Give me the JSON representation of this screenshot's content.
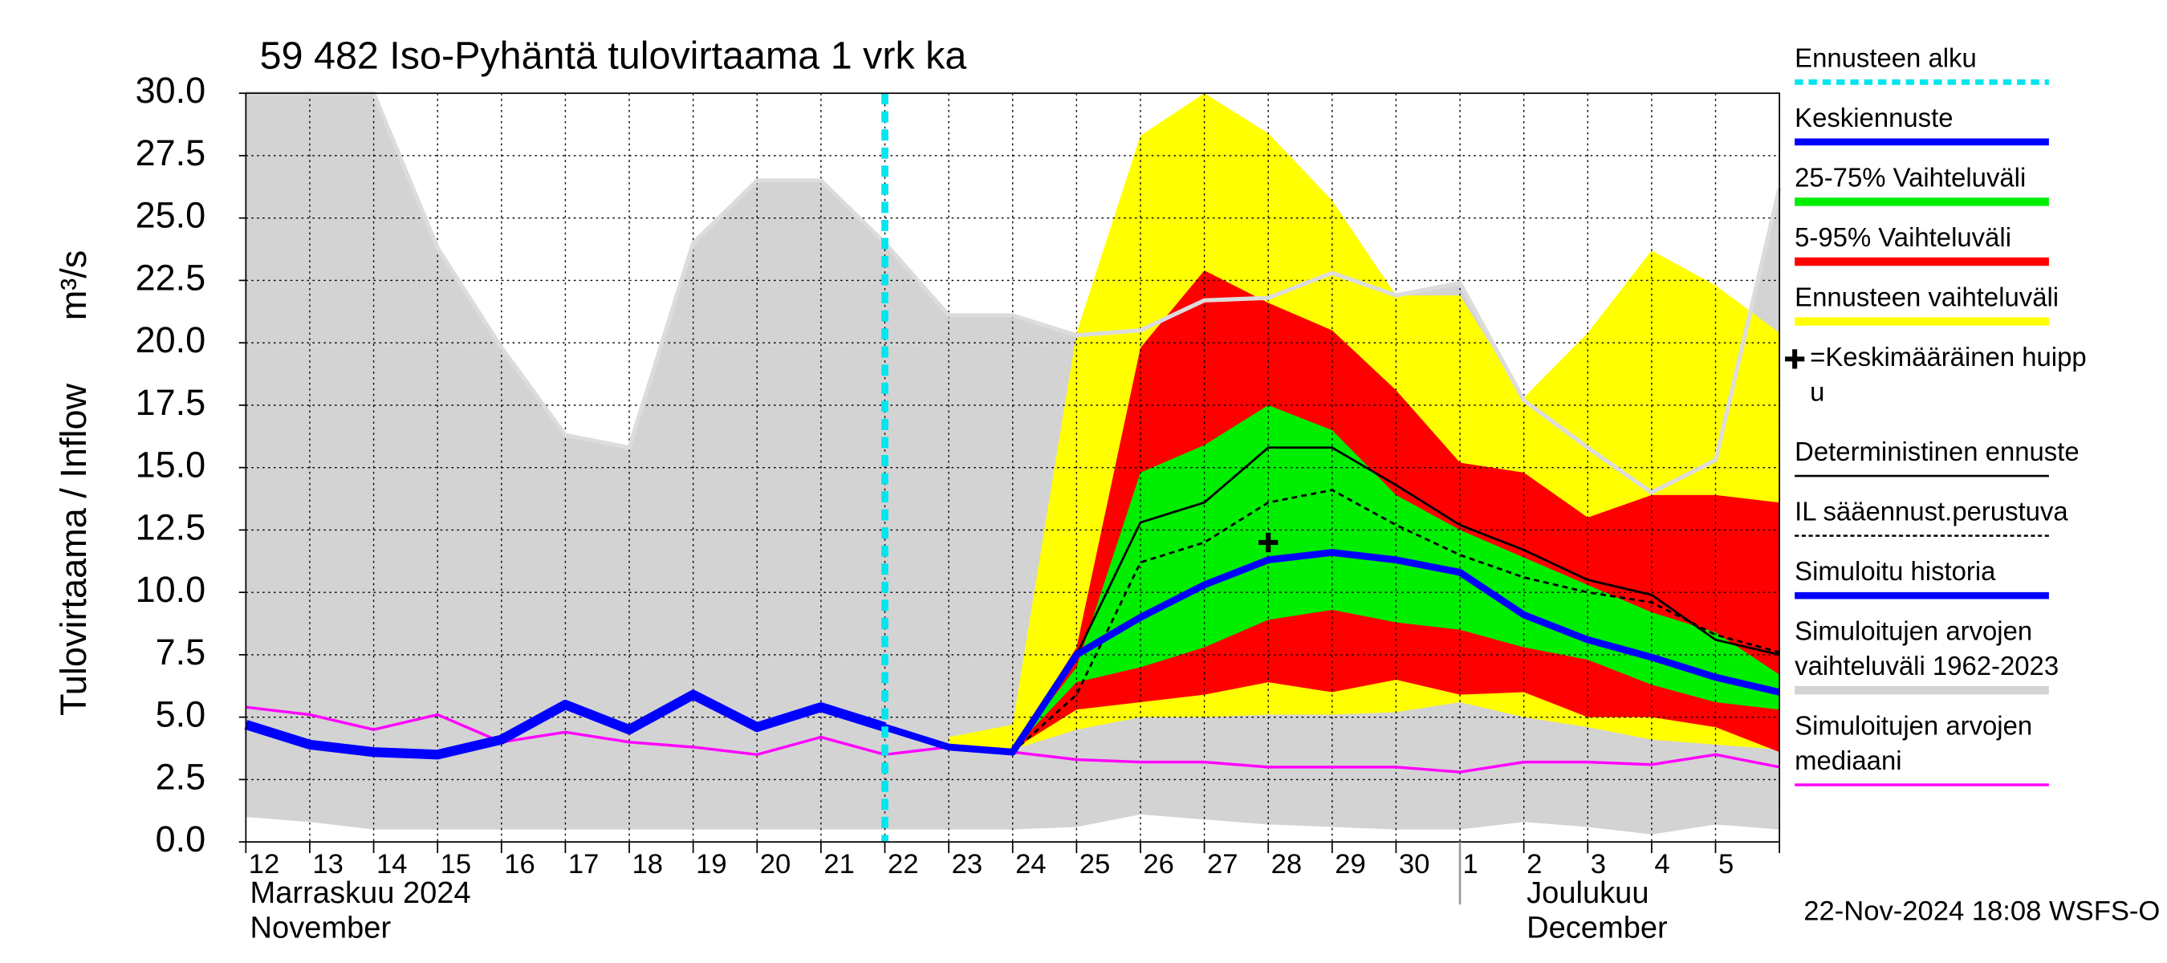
{
  "chart_data": {
    "type": "forecast",
    "title": "59 482 Iso-Pyhäntä tulovirtaama 1 vrk ka",
    "y_label": "Tulovirtaama / Inflow",
    "y_unit": "m³/s",
    "categories": [
      "12",
      "13",
      "14",
      "15",
      "16",
      "17",
      "18",
      "19",
      "20",
      "21",
      "22",
      "23",
      "24",
      "25",
      "26",
      "27",
      "28",
      "29",
      "30",
      "1",
      "2",
      "3",
      "4",
      "5",
      null
    ],
    "months": [
      {
        "lines": [
          "Marraskuu 2024",
          "November"
        ],
        "start": "12"
      },
      {
        "lines": [
          "Joulukuu",
          "December"
        ],
        "start": "1"
      }
    ],
    "ylim": [
      0,
      30
    ],
    "yticks": [
      {
        "value": 0,
        "label": "0.0"
      },
      {
        "value": 2.5,
        "label": "2.5"
      },
      {
        "value": 5,
        "label": "5.0"
      },
      {
        "value": 7.5,
        "label": "7.5"
      },
      {
        "value": 10,
        "label": "10.0"
      },
      {
        "value": 12.5,
        "label": "12.5"
      },
      {
        "value": 15,
        "label": "15.0"
      },
      {
        "value": 17.5,
        "label": "17.5"
      },
      {
        "value": 20,
        "label": "20.0"
      },
      {
        "value": 22.5,
        "label": "22.5"
      },
      {
        "value": 25,
        "label": "25.0"
      },
      {
        "value": 27.5,
        "label": "27.5"
      },
      {
        "value": 30,
        "label": "30.0"
      }
    ],
    "grid": true,
    "timestamp": "22-Nov-2024 18:08 WSFS-O",
    "series": [
      {
        "name": "Ennusteen alku",
        "kind": "vline",
        "color": "#00e5ee",
        "dash": true,
        "at": "22"
      },
      {
        "name": "Keskiennuste",
        "kind": "line",
        "color": "#0000ff",
        "width": 5,
        "values": [
          null,
          null,
          null,
          null,
          null,
          null,
          null,
          null,
          null,
          null,
          4.6,
          3.8,
          3.6,
          7.5,
          9.0,
          10.3,
          11.3,
          11.6,
          11.3,
          10.8,
          9.1,
          8.1,
          7.4,
          6.6,
          6.0
        ]
      },
      {
        "name": "25-75% Vaihteluväli",
        "kind": "band",
        "color": "#00ee00",
        "upper": [
          null,
          null,
          null,
          null,
          null,
          null,
          null,
          null,
          null,
          null,
          null,
          null,
          3.7,
          7.0,
          14.8,
          15.9,
          17.5,
          16.5,
          13.9,
          12.5,
          11.4,
          10.3,
          9.2,
          8.4,
          6.7
        ],
        "lower": [
          null,
          null,
          null,
          null,
          null,
          null,
          null,
          null,
          null,
          null,
          null,
          null,
          3.7,
          6.4,
          7.0,
          7.8,
          8.9,
          9.3,
          8.8,
          8.5,
          7.8,
          7.3,
          6.3,
          5.6,
          5.3
        ]
      },
      {
        "name": "5-95% Vaihteluväli",
        "kind": "band",
        "color": "#ff0000",
        "upper": [
          null,
          null,
          null,
          null,
          null,
          null,
          null,
          null,
          null,
          null,
          null,
          null,
          3.7,
          7.8,
          19.8,
          22.9,
          21.6,
          20.5,
          18.1,
          15.2,
          14.8,
          13.0,
          13.9,
          13.9,
          13.6
        ],
        "lower": [
          null,
          null,
          null,
          null,
          null,
          null,
          null,
          null,
          null,
          null,
          null,
          null,
          3.7,
          5.3,
          5.6,
          5.9,
          6.4,
          6.0,
          6.5,
          5.9,
          6.0,
          5.0,
          5.0,
          4.6,
          3.6
        ]
      },
      {
        "name": "Ennusteen vaihteluväli",
        "kind": "band",
        "color": "#ffff00",
        "upper": [
          null,
          null,
          null,
          null,
          null,
          null,
          null,
          null,
          null,
          null,
          null,
          4.2,
          4.7,
          20.4,
          28.3,
          30.0,
          28.4,
          25.7,
          21.9,
          21.9,
          17.8,
          20.4,
          23.7,
          22.3,
          20.4
        ],
        "lower": [
          null,
          null,
          null,
          null,
          null,
          null,
          null,
          null,
          null,
          null,
          null,
          3.9,
          3.7,
          4.5,
          5.0,
          5.0,
          5.1,
          5.1,
          5.2,
          5.6,
          5.0,
          4.6,
          4.1,
          3.9,
          3.7
        ]
      },
      {
        "name": [
          "=Keskimääräinen huipp",
          "u"
        ],
        "kind": "marker",
        "color": "#000000",
        "x": "28",
        "y": 12.0
      },
      {
        "name": "Deterministinen ennuste",
        "kind": "line",
        "color": "#000000",
        "width": 1.6,
        "values": [
          null,
          null,
          null,
          null,
          null,
          null,
          null,
          null,
          null,
          null,
          null,
          null,
          3.6,
          7.5,
          12.8,
          13.6,
          15.8,
          15.8,
          14.3,
          12.7,
          11.7,
          10.5,
          9.9,
          8.1,
          7.5
        ]
      },
      {
        "name": "IL sääennust.perustuva",
        "kind": "line",
        "color": "#000000",
        "width": 1.6,
        "dash": true,
        "values": [
          null,
          null,
          null,
          null,
          null,
          null,
          null,
          null,
          null,
          null,
          null,
          null,
          3.6,
          5.9,
          11.2,
          12.0,
          13.6,
          14.1,
          12.7,
          11.5,
          10.6,
          10.0,
          9.6,
          8.3,
          7.6
        ]
      },
      {
        "name": "Simuloitu historia",
        "kind": "line",
        "color": "#0000ff",
        "width": 7,
        "values": [
          4.7,
          3.9,
          3.6,
          3.5,
          4.1,
          5.5,
          4.5,
          5.9,
          4.6,
          5.4,
          4.6,
          null,
          null,
          null,
          null,
          null,
          null,
          null,
          null,
          null,
          null,
          null,
          null,
          null,
          null
        ]
      },
      {
        "name": [
          "Simuloitujen arvojen",
          "vaihteluväli 1962-2023"
        ],
        "kind": "band",
        "color": "#d3d3d3",
        "edge": "#dcdcdc",
        "upper": [
          30.0,
          30.0,
          30.0,
          23.8,
          19.8,
          16.3,
          15.8,
          24.0,
          26.5,
          26.5,
          24.0,
          21.1,
          21.1,
          20.3,
          20.5,
          21.7,
          21.8,
          22.8,
          21.9,
          22.4,
          17.7,
          15.8,
          14.0,
          15.3,
          26.2
        ],
        "lower": [
          1.0,
          0.8,
          0.5,
          0.5,
          0.5,
          0.5,
          0.5,
          0.5,
          0.5,
          0.5,
          0.5,
          0.5,
          0.5,
          0.6,
          1.1,
          0.9,
          0.7,
          0.6,
          0.5,
          0.5,
          0.8,
          0.6,
          0.3,
          0.7,
          0.5
        ]
      },
      {
        "name": [
          "Simuloitujen arvojen",
          "mediaani"
        ],
        "kind": "line",
        "color": "#ff00ff",
        "width": 2,
        "values": [
          5.4,
          5.1,
          4.5,
          5.1,
          4.0,
          4.4,
          4.0,
          3.8,
          3.5,
          4.2,
          3.5,
          3.8,
          3.6,
          3.3,
          3.2,
          3.2,
          3.0,
          3.0,
          3.0,
          2.8,
          3.2,
          3.2,
          3.1,
          3.5,
          3.0
        ]
      }
    ]
  }
}
